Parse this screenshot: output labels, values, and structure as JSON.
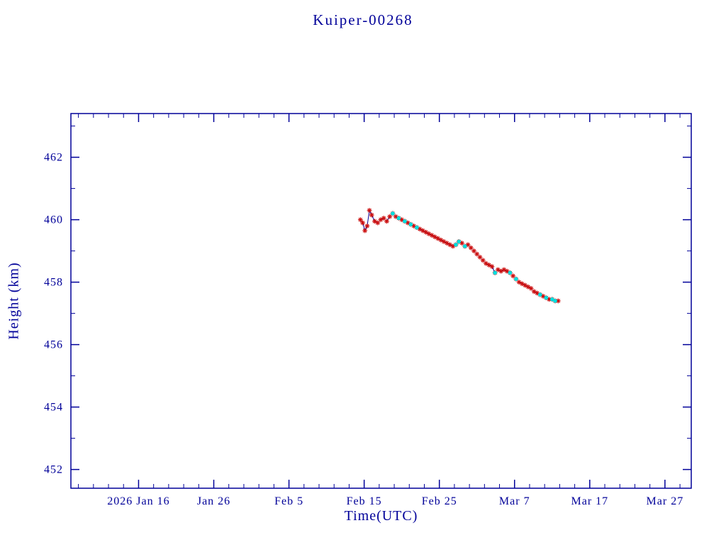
{
  "chart_data": {
    "type": "line",
    "title": "Kuiper-00268",
    "xlabel": "Time(UTC)",
    "ylabel": "Height (km)",
    "x_unit": "days since 2026 Jan 16",
    "xlim": [
      -9,
      73.5
    ],
    "ylim": [
      451.4,
      463.4
    ],
    "grid": false,
    "legend": "none",
    "x_ticks": [
      {
        "day": 0,
        "label": "2026 Jan 16"
      },
      {
        "day": 10,
        "label": "Jan 26"
      },
      {
        "day": 20,
        "label": "Feb 5"
      },
      {
        "day": 30,
        "label": "Feb 15"
      },
      {
        "day": 40,
        "label": "Feb 25"
      },
      {
        "day": 50,
        "label": "Mar 7"
      },
      {
        "day": 60,
        "label": "Mar 17"
      },
      {
        "day": 70,
        "label": "Mar 27"
      }
    ],
    "x_minor_tick_step_days": 2,
    "y_ticks": [
      452,
      454,
      456,
      458,
      460,
      462
    ],
    "y_minor_ticks": [
      453,
      455,
      457,
      459,
      461,
      463
    ],
    "colors": {
      "axis": "#000099",
      "line": "#000099",
      "red_marker": "#cc1111",
      "cyan_marker": "#00dddd",
      "background": "#ffffff"
    },
    "series": [
      {
        "name": "height-red-asterisk",
        "marker": "asterisk",
        "color": "#cc1111",
        "line_color": "#000099",
        "x": [
          29.5,
          29.8,
          30.1,
          30.4,
          30.7,
          31.0,
          31.4,
          31.8,
          32.2,
          32.6,
          33.0,
          33.4,
          33.8,
          34.2,
          34.6,
          35.0,
          35.4,
          35.8,
          36.2,
          36.6,
          37.0,
          37.4,
          37.8,
          38.2,
          38.6,
          39.0,
          39.4,
          39.8,
          40.2,
          40.6,
          41.0,
          41.4,
          41.8,
          42.2,
          42.6,
          43.0,
          43.4,
          43.8,
          44.2,
          44.6,
          45.0,
          45.4,
          45.8,
          46.2,
          46.6,
          47.0,
          47.4,
          47.8,
          48.2,
          48.6,
          49.0,
          49.4,
          49.8,
          50.2,
          50.6,
          51.0,
          51.4,
          51.8,
          52.2,
          52.6,
          53.0,
          53.4,
          53.8,
          54.2,
          54.6,
          55.0,
          55.4,
          55.8
        ],
        "y": [
          460.0,
          459.9,
          459.65,
          459.8,
          460.3,
          460.15,
          459.95,
          459.9,
          460.0,
          460.05,
          459.95,
          460.1,
          460.2,
          460.1,
          460.05,
          460.0,
          459.95,
          459.9,
          459.85,
          459.8,
          459.75,
          459.7,
          459.65,
          459.6,
          459.55,
          459.5,
          459.45,
          459.4,
          459.35,
          459.3,
          459.25,
          459.2,
          459.15,
          459.2,
          459.3,
          459.25,
          459.15,
          459.2,
          459.1,
          459.0,
          458.9,
          458.8,
          458.7,
          458.6,
          458.55,
          458.5,
          458.3,
          458.4,
          458.35,
          458.4,
          458.35,
          458.3,
          458.2,
          458.1,
          458.0,
          457.95,
          457.9,
          457.85,
          457.8,
          457.7,
          457.65,
          457.6,
          457.55,
          457.5,
          457.45,
          457.45,
          457.4,
          457.4
        ]
      },
      {
        "name": "height-cyan-dots",
        "marker": "dot",
        "color": "#00dddd",
        "x": [
          33.8,
          34.6,
          35.4,
          36.2,
          37.0,
          42.2,
          42.6,
          43.4,
          47.4,
          49.4,
          50.2,
          53.4,
          54.2,
          55.0,
          55.4
        ],
        "y": [
          460.2,
          460.05,
          459.95,
          459.85,
          459.75,
          459.2,
          459.3,
          459.15,
          458.3,
          458.3,
          458.1,
          457.6,
          457.5,
          457.45,
          457.4
        ]
      }
    ]
  }
}
